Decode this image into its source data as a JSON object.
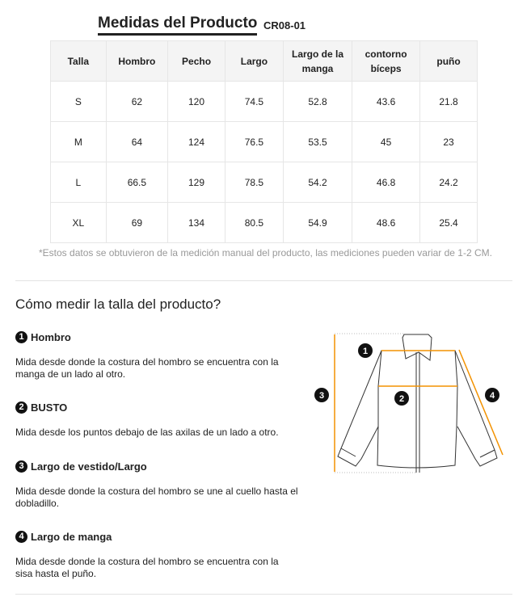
{
  "header": {
    "title": "Medidas del Producto",
    "code": "CR08-01"
  },
  "table": {
    "columns": [
      "Talla",
      "Hombro",
      "Pecho",
      "Largo",
      "Largo de la manga",
      "contorno bíceps",
      "puño"
    ],
    "rows": [
      [
        "S",
        "62",
        "120",
        "74.5",
        "52.8",
        "43.6",
        "21.8"
      ],
      [
        "M",
        "64",
        "124",
        "76.5",
        "53.5",
        "45",
        "23"
      ],
      [
        "L",
        "66.5",
        "129",
        "78.5",
        "54.2",
        "46.8",
        "24.2"
      ],
      [
        "XL",
        "69",
        "134",
        "80.5",
        "54.9",
        "48.6",
        "25.4"
      ]
    ]
  },
  "note": "*Estos datos se obtuvieron de la medición manual del producto, las mediciones pueden variar de 1-2 CM.",
  "howto": {
    "title": "Cómo medir la talla del producto?",
    "sections": [
      {
        "num": "1",
        "title": "Hombro",
        "desc": "Mida desde donde la costura del hombro se encuentra con la manga de un lado al otro."
      },
      {
        "num": "2",
        "title": "BUSTO",
        "desc": "Mida desde los puntos debajo de las axilas de un lado a otro."
      },
      {
        "num": "3",
        "title": "Largo de vestido/Largo",
        "desc": "Mida desde donde la costura del hombro se une al cuello hasta el dobladillo."
      },
      {
        "num": "4",
        "title": "Largo de manga",
        "desc": "Mida desde donde la costura del hombro se encuentra con la sisa hasta el puño."
      }
    ]
  },
  "colors": {
    "accent": "#f39200",
    "badge": "#111111"
  }
}
